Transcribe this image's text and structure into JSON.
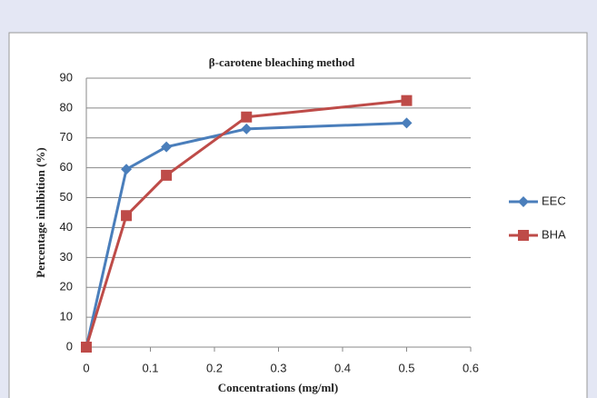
{
  "chart_data": {
    "type": "line",
    "title": "β-carotene bleaching method",
    "x_label": "Concentrations (mg/ml)",
    "y_label": "Percentage inhibition  (%)",
    "x": [
      0,
      0.0625,
      0.125,
      0.25,
      0.5
    ],
    "series": [
      {
        "name": "EEC",
        "color": "#4a7ebb",
        "marker": "diamond",
        "values": [
          0,
          59.5,
          67,
          73,
          75
        ]
      },
      {
        "name": "BHA",
        "color": "#be4b48",
        "marker": "square",
        "values": [
          0,
          44,
          57.5,
          77,
          82.5
        ]
      }
    ],
    "xlim": [
      0,
      0.6
    ],
    "xticks": [
      0,
      0.1,
      0.2,
      0.3,
      0.4,
      0.5,
      0.6
    ],
    "ylim": [
      0,
      90
    ],
    "yticks": [
      0,
      10,
      20,
      30,
      40,
      50,
      60,
      70,
      80,
      90
    ],
    "grid": true,
    "legend": "right"
  }
}
